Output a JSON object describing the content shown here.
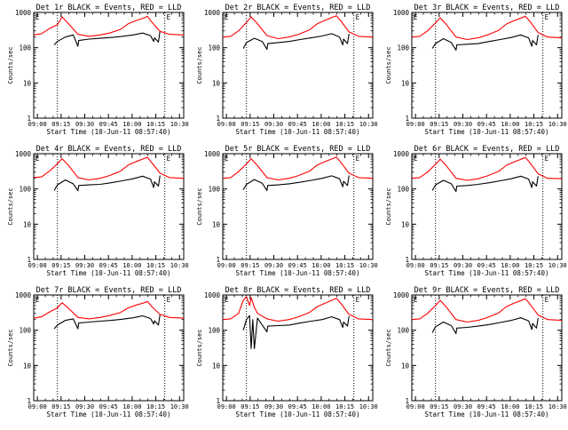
{
  "colors": {
    "events": "#000000",
    "lld": "#ff0000",
    "axis": "#000000",
    "background": "#ffffff"
  },
  "chart_data": [
    {
      "type": "line",
      "title": "Det 1r BLACK = Events, RED = LLD",
      "xlabel": "Start Time (10-Jun-11 08:57:40)",
      "ylabel": "Counts/sec",
      "yscale": "log",
      "ylim": [
        1,
        1000
      ],
      "xlim": [
        0,
        95
      ],
      "x_ticklabels": [
        "09:00",
        "09:15",
        "09:30",
        "09:45",
        "10:00",
        "10:15",
        "10:30"
      ],
      "y_ticklabels": [
        "1",
        "10",
        "100",
        "1000"
      ],
      "corner_markers": [
        "E",
        "E"
      ],
      "vlines_dotted": [
        15,
        83
      ],
      "series": [
        {
          "name": "Events",
          "color": "#000000",
          "x": [
            13,
            15,
            20,
            25,
            28,
            28.5,
            35,
            42,
            49,
            56,
            63,
            69,
            74,
            76,
            76.5,
            79,
            80
          ],
          "y": [
            120,
            150,
            200,
            230,
            110,
            160,
            175,
            185,
            195,
            210,
            230,
            260,
            220,
            150,
            190,
            145,
            300
          ]
        },
        {
          "name": "LLD",
          "color": "#ff0000",
          "x": [
            0,
            5,
            10,
            15,
            18,
            22,
            28,
            35,
            42,
            48,
            55,
            60,
            65,
            70,
            72,
            75,
            80,
            86,
            95
          ],
          "y": [
            230,
            250,
            350,
            450,
            750,
            480,
            240,
            210,
            230,
            260,
            330,
            480,
            590,
            700,
            780,
            520,
            290,
            240,
            230
          ]
        }
      ]
    },
    {
      "type": "line",
      "title": "Det 2r BLACK = Events, RED = LLD",
      "xlabel": "Start Time (10-Jun-11 08:57:40)",
      "ylabel": "Counts/sec",
      "yscale": "log",
      "ylim": [
        1,
        1000
      ],
      "xlim": [
        0,
        95
      ],
      "x_ticklabels": [
        "09:00",
        "09:15",
        "09:30",
        "09:45",
        "10:00",
        "10:15",
        "10:30"
      ],
      "y_ticklabels": [
        "1",
        "10",
        "100",
        "1000"
      ],
      "corner_markers": [
        "E",
        "E"
      ],
      "vlines_dotted": [
        15,
        83
      ],
      "series": [
        {
          "name": "Events",
          "color": "#000000",
          "x": [
            13,
            15,
            20,
            25,
            28,
            28.5,
            35,
            42,
            49,
            56,
            63,
            69,
            74,
            76,
            76.5,
            79,
            80
          ],
          "y": [
            95,
            140,
            185,
            150,
            90,
            130,
            140,
            150,
            170,
            190,
            215,
            250,
            200,
            120,
            175,
            130,
            250
          ]
        },
        {
          "name": "LLD",
          "color": "#ff0000",
          "x": [
            0,
            5,
            10,
            15,
            18,
            22,
            28,
            35,
            42,
            48,
            55,
            60,
            65,
            70,
            72,
            75,
            80,
            86,
            95
          ],
          "y": [
            200,
            210,
            300,
            520,
            750,
            480,
            220,
            180,
            200,
            240,
            320,
            480,
            600,
            750,
            800,
            560,
            280,
            210,
            200
          ]
        }
      ]
    },
    {
      "type": "line",
      "title": "Det 3r BLACK = Events, RED = LLD",
      "xlabel": "Start Time (10-Jun-11 08:57:40)",
      "ylabel": "Counts/sec",
      "yscale": "log",
      "ylim": [
        1,
        1000
      ],
      "xlim": [
        0,
        95
      ],
      "x_ticklabels": [
        "09:00",
        "09:15",
        "09:30",
        "09:45",
        "10:00",
        "10:15",
        "10:30"
      ],
      "y_ticklabels": [
        "1",
        "10",
        "100",
        "1000"
      ],
      "corner_markers": [
        "E",
        "E"
      ],
      "vlines_dotted": [
        15,
        83
      ],
      "series": [
        {
          "name": "Events",
          "color": "#000000",
          "x": [
            13,
            15,
            20,
            25,
            28,
            28.5,
            35,
            42,
            49,
            56,
            63,
            69,
            74,
            76,
            76.5,
            79,
            80
          ],
          "y": [
            95,
            130,
            180,
            140,
            85,
            120,
            125,
            130,
            150,
            170,
            195,
            230,
            190,
            110,
            160,
            120,
            230
          ]
        },
        {
          "name": "LLD",
          "color": "#ff0000",
          "x": [
            0,
            5,
            10,
            15,
            18,
            22,
            28,
            35,
            42,
            48,
            55,
            60,
            65,
            70,
            72,
            75,
            80,
            86,
            95
          ],
          "y": [
            200,
            210,
            300,
            500,
            700,
            450,
            200,
            170,
            190,
            230,
            310,
            470,
            590,
            720,
            780,
            540,
            270,
            200,
            190
          ]
        }
      ]
    },
    {
      "type": "line",
      "title": "Det 4r BLACK = Events, RED = LLD",
      "xlabel": "Start Time (10-Jun-11 08:57:40)",
      "ylabel": "Counts/sec",
      "yscale": "log",
      "ylim": [
        1,
        1000
      ],
      "xlim": [
        0,
        95
      ],
      "x_ticklabels": [
        "09:00",
        "09:15",
        "09:30",
        "09:45",
        "10:00",
        "10:15",
        "10:30"
      ],
      "y_ticklabels": [
        "1",
        "10",
        "100",
        "1000"
      ],
      "corner_markers": [
        "E",
        "E"
      ],
      "vlines_dotted": [
        15,
        83
      ],
      "series": [
        {
          "name": "Events",
          "color": "#000000",
          "x": [
            13,
            15,
            20,
            25,
            28,
            28.5,
            35,
            42,
            49,
            56,
            63,
            69,
            74,
            76,
            76.5,
            79,
            80
          ],
          "y": [
            90,
            130,
            180,
            140,
            90,
            125,
            130,
            135,
            150,
            170,
            195,
            230,
            190,
            110,
            160,
            120,
            240
          ]
        },
        {
          "name": "LLD",
          "color": "#ff0000",
          "x": [
            0,
            5,
            10,
            15,
            18,
            22,
            28,
            35,
            42,
            48,
            55,
            60,
            65,
            70,
            72,
            75,
            80,
            86,
            95
          ],
          "y": [
            210,
            220,
            320,
            520,
            720,
            470,
            210,
            180,
            200,
            240,
            320,
            480,
            600,
            730,
            790,
            540,
            280,
            210,
            200
          ]
        }
      ]
    },
    {
      "type": "line",
      "title": "Det 5r BLACK = Events, RED = LLD",
      "xlabel": "Start Time (10-Jun-11 08:57:40)",
      "ylabel": "Counts/sec",
      "yscale": "log",
      "ylim": [
        1,
        1000
      ],
      "xlim": [
        0,
        95
      ],
      "x_ticklabels": [
        "09:00",
        "09:15",
        "09:30",
        "09:45",
        "10:00",
        "10:15",
        "10:30"
      ],
      "y_ticklabels": [
        "1",
        "10",
        "100",
        "1000"
      ],
      "corner_markers": [
        "E",
        "E"
      ],
      "vlines_dotted": [
        15,
        83
      ],
      "series": [
        {
          "name": "Events",
          "color": "#000000",
          "x": [
            13,
            15,
            20,
            25,
            28,
            28.5,
            35,
            42,
            49,
            56,
            63,
            69,
            74,
            76,
            76.5,
            79,
            80
          ],
          "y": [
            95,
            135,
            185,
            145,
            90,
            125,
            130,
            140,
            155,
            175,
            200,
            235,
            195,
            115,
            165,
            125,
            240
          ]
        },
        {
          "name": "LLD",
          "color": "#ff0000",
          "x": [
            0,
            5,
            10,
            15,
            18,
            22,
            28,
            35,
            42,
            48,
            55,
            60,
            65,
            70,
            72,
            75,
            80,
            86,
            95
          ],
          "y": [
            200,
            210,
            310,
            510,
            720,
            460,
            210,
            180,
            200,
            240,
            320,
            480,
            600,
            740,
            800,
            550,
            280,
            210,
            200
          ]
        }
      ]
    },
    {
      "type": "line",
      "title": "Det 6r BLACK = Events, RED = LLD",
      "xlabel": "Start Time (10-Jun-11 08:57:40)",
      "ylabel": "Counts/sec",
      "yscale": "log",
      "ylim": [
        1,
        1000
      ],
      "xlim": [
        0,
        95
      ],
      "x_ticklabels": [
        "09:00",
        "09:15",
        "09:30",
        "09:45",
        "10:00",
        "10:15",
        "10:30"
      ],
      "y_ticklabels": [
        "1",
        "10",
        "100",
        "1000"
      ],
      "corner_markers": [
        "E",
        "E"
      ],
      "vlines_dotted": [
        15,
        83
      ],
      "series": [
        {
          "name": "Events",
          "color": "#000000",
          "x": [
            13,
            15,
            20,
            25,
            28,
            28.5,
            35,
            42,
            49,
            56,
            63,
            69,
            74,
            76,
            76.5,
            79,
            80
          ],
          "y": [
            90,
            130,
            175,
            140,
            85,
            120,
            125,
            135,
            150,
            170,
            195,
            230,
            190,
            110,
            160,
            120,
            230
          ]
        },
        {
          "name": "LLD",
          "color": "#ff0000",
          "x": [
            0,
            5,
            10,
            15,
            18,
            22,
            28,
            35,
            42,
            48,
            55,
            60,
            65,
            70,
            72,
            75,
            80,
            86,
            95
          ],
          "y": [
            200,
            210,
            300,
            500,
            700,
            450,
            200,
            175,
            195,
            235,
            315,
            470,
            590,
            720,
            780,
            540,
            270,
            200,
            195
          ]
        }
      ]
    },
    {
      "type": "line",
      "title": "Det 7r BLACK = Events, RED = LLD",
      "xlabel": "Start Time (10-Jun-11 08:57:40)",
      "ylabel": "Counts/sec",
      "yscale": "log",
      "ylim": [
        1,
        1000
      ],
      "xlim": [
        0,
        95
      ],
      "x_ticklabels": [
        "09:00",
        "09:15",
        "09:30",
        "09:45",
        "10:00",
        "10:15",
        "10:30"
      ],
      "y_ticklabels": [
        "1",
        "10",
        "100",
        "1000"
      ],
      "corner_markers": [
        "E",
        "E"
      ],
      "vlines_dotted": [
        15,
        83
      ],
      "series": [
        {
          "name": "Events",
          "color": "#000000",
          "x": [
            13,
            15,
            20,
            25,
            28,
            28.5,
            35,
            42,
            49,
            56,
            63,
            69,
            74,
            76,
            76.5,
            79,
            80
          ],
          "y": [
            110,
            140,
            190,
            210,
            110,
            160,
            170,
            180,
            190,
            205,
            225,
            255,
            215,
            150,
            185,
            140,
            280
          ]
        },
        {
          "name": "LLD",
          "color": "#ff0000",
          "x": [
            0,
            5,
            10,
            15,
            18,
            22,
            28,
            35,
            42,
            48,
            55,
            60,
            65,
            70,
            72,
            75,
            80,
            86,
            95
          ],
          "y": [
            220,
            240,
            330,
            430,
            600,
            420,
            230,
            210,
            230,
            260,
            320,
            430,
            520,
            600,
            650,
            460,
            280,
            230,
            220
          ]
        }
      ]
    },
    {
      "type": "line",
      "title": "Det 8r BLACK = Events, RED = LLD",
      "xlabel": "Start Time (10-Jun-11 08:57:40)",
      "ylabel": "Counts/sec",
      "yscale": "log",
      "ylim": [
        1,
        1000
      ],
      "xlim": [
        0,
        95
      ],
      "x_ticklabels": [
        "09:00",
        "09:15",
        "09:30",
        "09:45",
        "10:00",
        "10:15",
        "10:30"
      ],
      "y_ticklabels": [
        "1",
        "10",
        "100",
        "1000"
      ],
      "corner_markers": [
        "E",
        "E"
      ],
      "vlines_dotted": [
        15,
        83
      ],
      "series": [
        {
          "name": "Events",
          "color": "#000000",
          "x": [
            13,
            15,
            17,
            18,
            19,
            20,
            22,
            25,
            28,
            28.5,
            35,
            42,
            49,
            56,
            63,
            69,
            74,
            76,
            76.5,
            79,
            80
          ],
          "y": [
            100,
            200,
            260,
            30,
            200,
            30,
            220,
            140,
            90,
            130,
            135,
            140,
            160,
            180,
            200,
            240,
            200,
            120,
            170,
            130,
            250
          ]
        },
        {
          "name": "LLD",
          "color": "#ff0000",
          "x": [
            0,
            5,
            10,
            13,
            15,
            17,
            18,
            20,
            22,
            28,
            35,
            42,
            48,
            55,
            60,
            65,
            70,
            72,
            75,
            80,
            86,
            95
          ],
          "y": [
            200,
            210,
            300,
            700,
            900,
            500,
            850,
            450,
            300,
            210,
            180,
            200,
            240,
            320,
            470,
            590,
            730,
            800,
            560,
            280,
            210,
            200
          ]
        }
      ]
    },
    {
      "type": "line",
      "title": "Det 9r BLACK = Events, RED = LLD",
      "xlabel": "Start Time (10-Jun-11 08:57:40)",
      "ylabel": "Counts/sec",
      "yscale": "log",
      "ylim": [
        1,
        1000
      ],
      "xlim": [
        0,
        95
      ],
      "x_ticklabels": [
        "09:00",
        "09:15",
        "09:30",
        "09:45",
        "10:00",
        "10:15",
        "10:30"
      ],
      "y_ticklabels": [
        "1",
        "10",
        "100",
        "1000"
      ],
      "corner_markers": [
        "E",
        "E"
      ],
      "vlines_dotted": [
        15,
        83
      ],
      "series": [
        {
          "name": "Events",
          "color": "#000000",
          "x": [
            13,
            15,
            20,
            25,
            28,
            28.5,
            35,
            42,
            49,
            56,
            63,
            69,
            74,
            76,
            76.5,
            79,
            80
          ],
          "y": [
            85,
            125,
            170,
            135,
            80,
            115,
            120,
            130,
            145,
            165,
            190,
            225,
            185,
            105,
            155,
            115,
            220
          ]
        },
        {
          "name": "LLD",
          "color": "#ff0000",
          "x": [
            0,
            5,
            10,
            15,
            18,
            22,
            28,
            35,
            42,
            48,
            55,
            60,
            65,
            70,
            72,
            75,
            80,
            86,
            95
          ],
          "y": [
            200,
            210,
            300,
            500,
            700,
            450,
            200,
            170,
            190,
            230,
            310,
            470,
            590,
            720,
            780,
            540,
            270,
            200,
            190
          ]
        }
      ]
    }
  ]
}
